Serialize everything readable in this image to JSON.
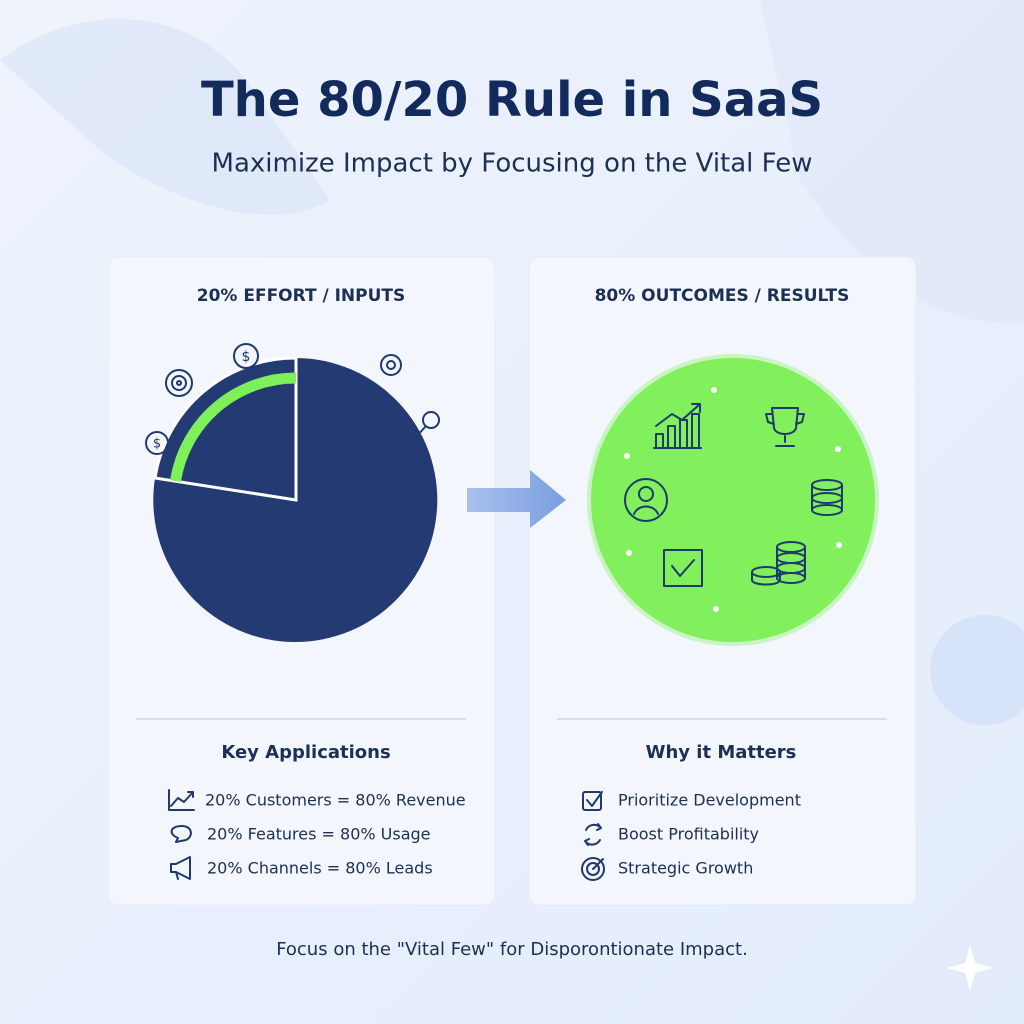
{
  "header": {
    "title": "The 80/20 Rule in SaaS",
    "subtitle": "Maximize Impact by Focusing on the Vital Few"
  },
  "panels": [
    {
      "heading": "20% EFFORT / INPUTS",
      "section_title": "Key Applications",
      "items": [
        "20% Customers = 80% Revenue",
        "20% Features = 80% Usage",
        "20% Channels = 80% Leads"
      ]
    },
    {
      "heading": "80% OUTCOMES / RESULTS",
      "section_title": "Why it Matters",
      "items": [
        "Prioritize Development",
        "Boost Profitability",
        "Strategic Growth"
      ]
    }
  ],
  "footer": "Focus on the \"Vital Few\" for Disporontionate Impact."
}
